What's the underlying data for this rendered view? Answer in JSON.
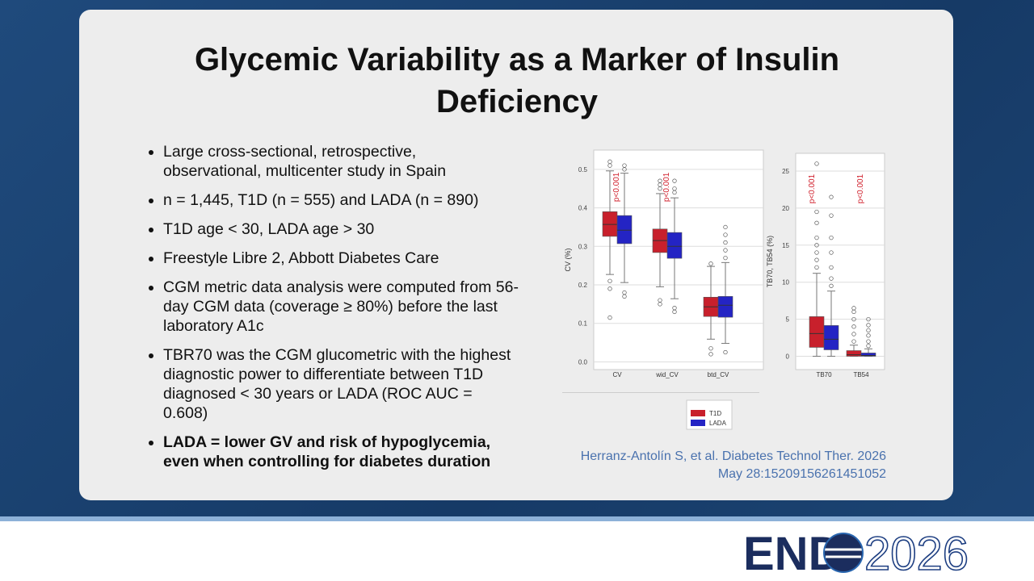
{
  "slide": {
    "title": "Glycemic Variability as a Marker of Insulin Deficiency",
    "bullets": [
      "Large cross-sectional, retrospective, observational, multicenter study in Spain",
      "n = 1,445, T1D (n = 555) and LADA (n = 890)",
      "T1D age < 30, LADA age > 30",
      "Freestyle Libre 2, Abbott Diabetes Care",
      "CGM metric data analysis were computed from 56-day CGM data (coverage ≥ 80%) before the last laboratory A1c",
      "TBR70 was the CGM glucometric with the highest diagnostic power to differentiate between T1D diagnosed < 30 years or LADA (ROC AUC = 0.608)"
    ],
    "key_bullet": "LADA = lower GV and risk of hypoglycemia, even when controlling for diabetes duration",
    "citation": [
      "Herranz-Antolín S, et al. Diabetes Technol Ther. 2026",
      "May 28:15209156261451052"
    ]
  },
  "logo": {
    "prefix": "END",
    "year": "2026"
  },
  "chart_data": [
    {
      "type": "box",
      "y_label": "CV (%)",
      "categories": [
        "CV",
        "wid_CV",
        "btd_CV"
      ],
      "ylim": [
        -0.02,
        0.55
      ],
      "yticks": [
        {
          "value": 0,
          "label": "0.0"
        },
        0.1,
        0.2,
        0.3,
        0.4,
        0.5
      ],
      "grid": true,
      "annotations": [
        "p<0.001",
        "p<0.001"
      ],
      "series": [
        {
          "name": "T1D",
          "color": "#c8202c",
          "values": [
            {
              "low": 0.227,
              "q1": 0.326,
              "median": 0.357,
              "q3": 0.39,
              "high": 0.496,
              "outliers": [
                0.52,
                0.51,
                0.21,
                0.19,
                0.115
              ]
            },
            {
              "low": 0.195,
              "q1": 0.284,
              "median": 0.315,
              "q3": 0.345,
              "high": 0.437,
              "outliers": [
                0.47,
                0.46,
                0.45,
                0.16,
                0.15
              ]
            },
            {
              "low": 0.059,
              "q1": 0.118,
              "median": 0.143,
              "q3": 0.168,
              "high": 0.248,
              "outliers": [
                0.255,
                0.035,
                0.02
              ]
            }
          ]
        },
        {
          "name": "LADA",
          "color": "#2424c4",
          "values": [
            {
              "low": 0.206,
              "q1": 0.307,
              "median": 0.342,
              "q3": 0.38,
              "high": 0.49,
              "outliers": [
                0.51,
                0.5,
                0.18,
                0.17
              ]
            },
            {
              "low": 0.164,
              "q1": 0.269,
              "median": 0.3,
              "q3": 0.336,
              "high": 0.426,
              "outliers": [
                0.47,
                0.45,
                0.44,
                0.14,
                0.13
              ]
            },
            {
              "low": 0.048,
              "q1": 0.116,
              "median": 0.147,
              "q3": 0.17,
              "high": 0.258,
              "outliers": [
                0.35,
                0.33,
                0.31,
                0.29,
                0.27,
                0.025
              ]
            }
          ]
        }
      ]
    },
    {
      "type": "box",
      "y_label": "TB70, TB54 (%)",
      "categories": [
        "TB70",
        "TB54"
      ],
      "ylim": [
        -1.8,
        27.4
      ],
      "yticks": [
        0,
        5,
        10,
        15,
        20,
        25
      ],
      "grid": true,
      "annotations": [
        "p<0.001",
        "p<0.001"
      ],
      "legend": "below",
      "series": [
        {
          "name": "T1D",
          "color": "#c8202c",
          "values": [
            {
              "low": 0,
              "q1": 1.2,
              "median": 3.06,
              "q3": 5.35,
              "high": 11.2,
              "outliers": [
                26,
                19.5,
                18,
                16,
                15,
                14,
                13,
                12
              ]
            },
            {
              "low": 0,
              "q1": 0,
              "median": 0.2,
              "q3": 0.76,
              "high": 1.5,
              "outliers": [
                6.5,
                6,
                5,
                4,
                3,
                2
              ]
            }
          ]
        },
        {
          "name": "LADA",
          "color": "#2424c4",
          "values": [
            {
              "low": 0,
              "q1": 0.87,
              "median": 2.3,
              "q3": 4.15,
              "high": 8.8,
              "outliers": [
                21.5,
                19,
                16,
                14,
                12,
                10.5,
                9.5
              ]
            },
            {
              "low": 0,
              "q1": 0,
              "median": 0.1,
              "q3": 0.44,
              "high": 1.0,
              "outliers": [
                5,
                4.2,
                3.5,
                2.8,
                2,
                1.4
              ]
            }
          ]
        }
      ]
    }
  ]
}
